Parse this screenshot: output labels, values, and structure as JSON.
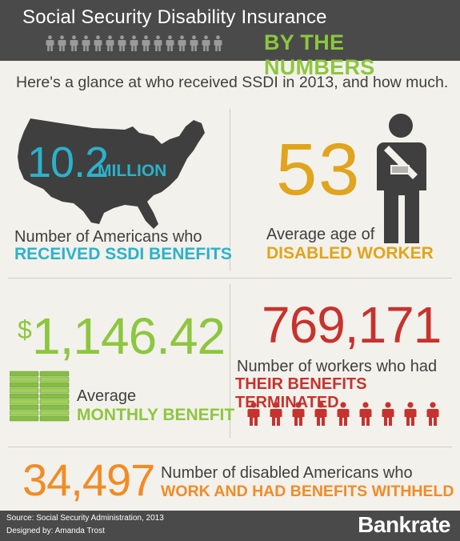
{
  "header": {
    "title": "Social Security Disability Insurance",
    "subtitle": "BY THE NUMBERS",
    "figure_count": 15
  },
  "intro": "Here's a glance at who received SSDI in 2013, and how much.",
  "stats": {
    "recipients": {
      "value": "10.2",
      "unit": "MILLION",
      "label": "Number of Americans who",
      "label_emphasis": "RECEIVED SSDI BENEFITS",
      "icon": "us-map-icon"
    },
    "age": {
      "value": "53",
      "label": "Average age of",
      "label_emphasis": "DISABLED WORKER",
      "icon": "injured-man-icon"
    },
    "benefit": {
      "currency": "$",
      "value": "1,146.42",
      "label": "Average",
      "label_emphasis": "MONTHLY BENEFIT",
      "icon": "money-stack-icon"
    },
    "terminated": {
      "value": "769,171",
      "label": "Number of workers who had",
      "label_emphasis": "THEIR BENEFITS TERMINATED",
      "figure_count": 9
    },
    "withheld": {
      "value": "34,497",
      "label": "Number of disabled Americans who",
      "label_emphasis": "WORK AND HAD BENEFITS WITHHELD"
    }
  },
  "colors": {
    "header_bg": "#4a4a4a",
    "background": "#f3f1eb",
    "blue": "#2ab2cb",
    "gold": "#e0a41d",
    "green": "#8dc63f",
    "red": "#c8322e",
    "orange": "#f28b25"
  },
  "footer": {
    "source": "Source: Social Security Administration, 2013",
    "designer": "Designed by: Amanda Trost",
    "logo": "Bankrate"
  }
}
